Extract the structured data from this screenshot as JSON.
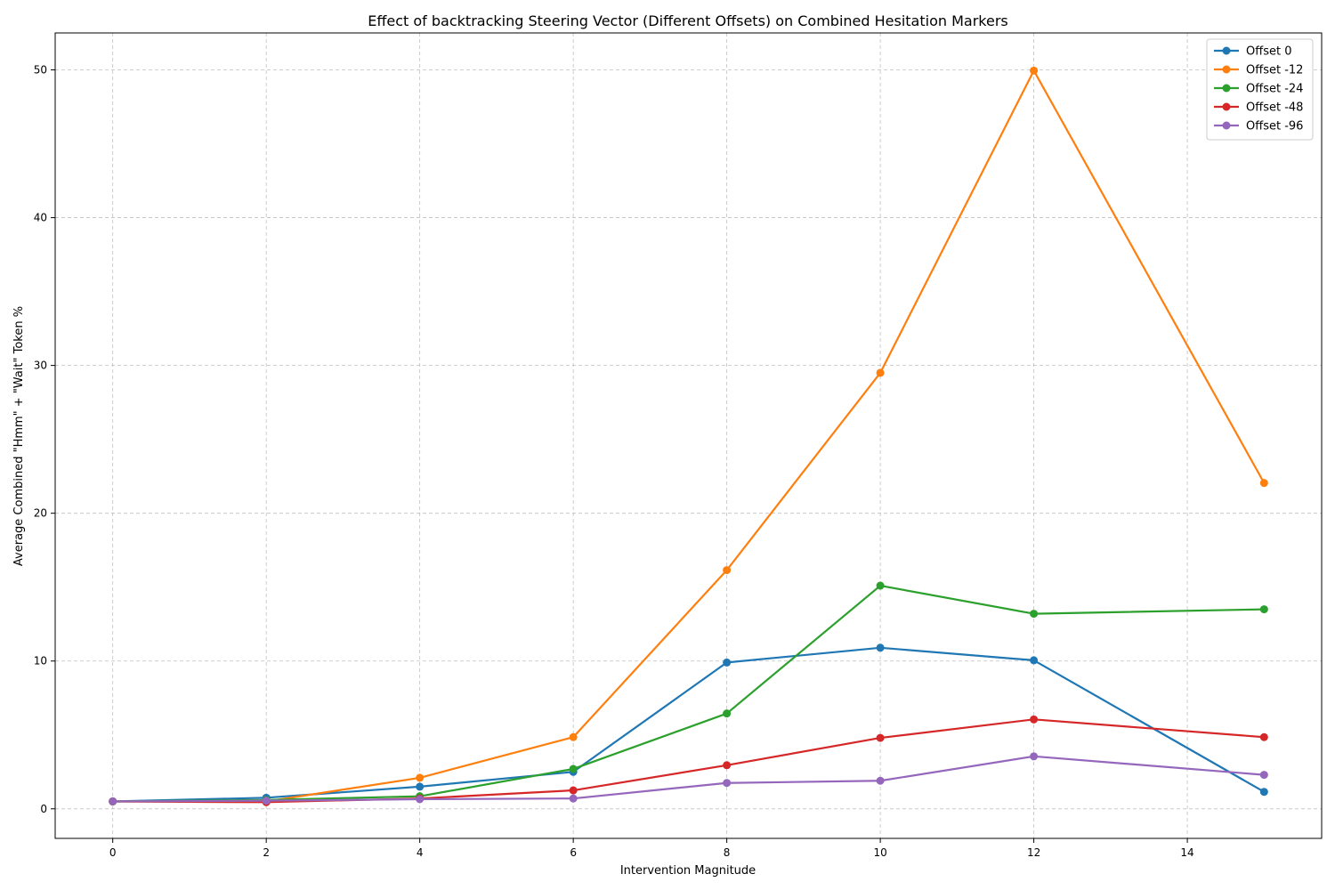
{
  "chart_data": {
    "type": "line",
    "title": "Effect of backtracking Steering Vector (Different Offsets) on Combined Hesitation Markers",
    "xlabel": "Intervention Magnitude",
    "ylabel": "Average Combined \"Hmm\" + \"Wait\" Token %",
    "xlim": [
      -0.75,
      15.75
    ],
    "ylim": [
      -2,
      52.5
    ],
    "xticks": [
      0,
      2,
      4,
      6,
      8,
      10,
      12,
      14
    ],
    "yticks": [
      0,
      10,
      20,
      30,
      40,
      50
    ],
    "grid": true,
    "legend_position": "top-right",
    "x": [
      0,
      2,
      4,
      6,
      8,
      10,
      12,
      15
    ],
    "series": [
      {
        "name": "Offset 0",
        "color": "#1f77b4",
        "values": [
          0.5,
          0.75,
          1.5,
          2.5,
          9.9,
          10.9,
          10.05,
          1.15
        ]
      },
      {
        "name": "Offset -12",
        "color": "#ff7f0e",
        "values": [
          0.5,
          0.5,
          2.1,
          4.85,
          16.15,
          29.5,
          49.95,
          22.05
        ]
      },
      {
        "name": "Offset -24",
        "color": "#2ca02c",
        "values": [
          0.5,
          0.6,
          0.85,
          2.7,
          6.45,
          15.1,
          13.2,
          13.5
        ]
      },
      {
        "name": "Offset -48",
        "color": "#d62728",
        "values": [
          0.5,
          0.45,
          0.7,
          1.25,
          2.95,
          4.8,
          6.05,
          4.85
        ]
      },
      {
        "name": "Offset -96",
        "color": "#9467bd",
        "values": [
          0.5,
          0.55,
          0.65,
          0.7,
          1.75,
          1.9,
          3.55,
          2.3
        ]
      }
    ]
  }
}
